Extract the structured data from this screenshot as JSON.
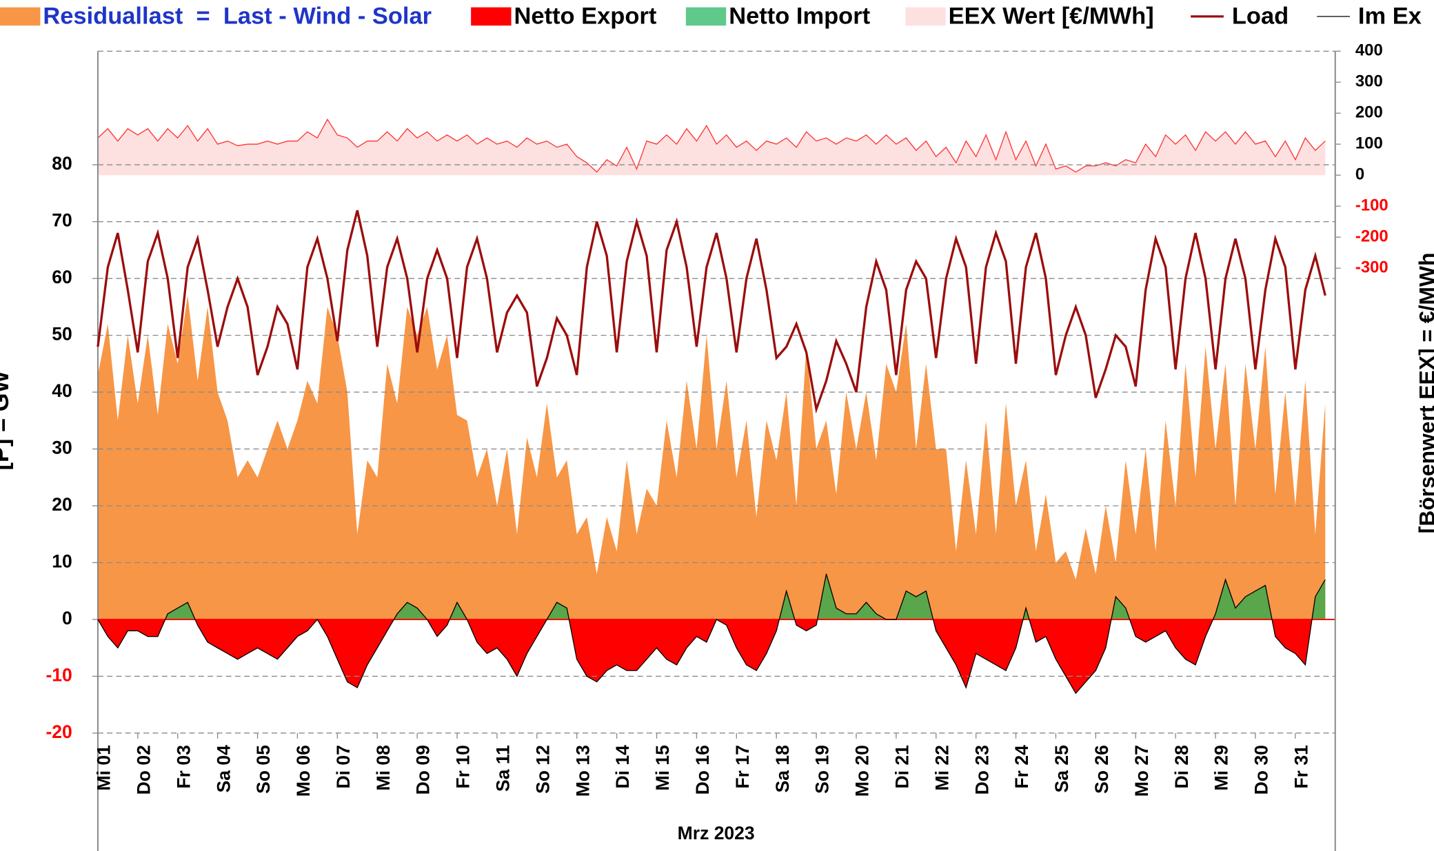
{
  "chart_data": {
    "type": "area",
    "xlabel": "Mrz 2023",
    "ylabel": "[P] = GW",
    "y2label": "[Börsenwert EEX]  =  €/MWh",
    "xlim": [
      0,
      31
    ],
    "ylim": [
      -20,
      100
    ],
    "y2lim": [
      -1800,
      400
    ],
    "xticks": [
      {
        "value": 0,
        "label": "Mi 01"
      },
      {
        "value": 1,
        "label": "Do 02"
      },
      {
        "value": 2,
        "label": "Fr 03"
      },
      {
        "value": 3,
        "label": "Sa 04"
      },
      {
        "value": 4,
        "label": "So 05"
      },
      {
        "value": 5,
        "label": "Mo 06"
      },
      {
        "value": 6,
        "label": "Di 07"
      },
      {
        "value": 7,
        "label": "Mi 08"
      },
      {
        "value": 8,
        "label": "Do 09"
      },
      {
        "value": 9,
        "label": "Fr 10"
      },
      {
        "value": 10,
        "label": "Sa 11"
      },
      {
        "value": 11,
        "label": "So 12"
      },
      {
        "value": 12,
        "label": "Mo 13"
      },
      {
        "value": 13,
        "label": "Di 14"
      },
      {
        "value": 14,
        "label": "Mi 15"
      },
      {
        "value": 15,
        "label": "Do 16"
      },
      {
        "value": 16,
        "label": "Fr 17"
      },
      {
        "value": 17,
        "label": "Sa 18"
      },
      {
        "value": 18,
        "label": "So 19"
      },
      {
        "value": 19,
        "label": "Mo 20"
      },
      {
        "value": 20,
        "label": "Di 21"
      },
      {
        "value": 21,
        "label": "Mi 22"
      },
      {
        "value": 22,
        "label": "Do 23"
      },
      {
        "value": 23,
        "label": "Fr 24"
      },
      {
        "value": 24,
        "label": "Sa 25"
      },
      {
        "value": 25,
        "label": "So 26"
      },
      {
        "value": 26,
        "label": "Mo 27"
      },
      {
        "value": 27,
        "label": "Di 28"
      },
      {
        "value": 28,
        "label": "Mi 29"
      },
      {
        "value": 29,
        "label": "Do 30"
      },
      {
        "value": 30,
        "label": "Fr 31"
      }
    ],
    "yticks": [
      -20,
      -10,
      0,
      10,
      20,
      30,
      40,
      50,
      60,
      70,
      80
    ],
    "y2ticks": [
      -300,
      -200,
      -100,
      0,
      100,
      200,
      300,
      400
    ],
    "grid": true,
    "negative_tick_color": "#ff0000",
    "zero_line_color": "#ff0000",
    "x": [
      0,
      0.25,
      0.5,
      0.75,
      1,
      1.25,
      1.5,
      1.75,
      2,
      2.25,
      2.5,
      2.75,
      3,
      3.25,
      3.5,
      3.75,
      4,
      4.25,
      4.5,
      4.75,
      5,
      5.25,
      5.5,
      5.75,
      6,
      6.25,
      6.5,
      6.75,
      7,
      7.25,
      7.5,
      7.75,
      8,
      8.25,
      8.5,
      8.75,
      9,
      9.25,
      9.5,
      9.75,
      10,
      10.25,
      10.5,
      10.75,
      11,
      11.25,
      11.5,
      11.75,
      12,
      12.25,
      12.5,
      12.75,
      13,
      13.25,
      13.5,
      13.75,
      14,
      14.25,
      14.5,
      14.75,
      15,
      15.25,
      15.5,
      15.75,
      16,
      16.25,
      16.5,
      16.75,
      17,
      17.25,
      17.5,
      17.75,
      18,
      18.25,
      18.5,
      18.75,
      19,
      19.25,
      19.5,
      19.75,
      20,
      20.25,
      20.5,
      20.75,
      21,
      21.25,
      21.5,
      21.75,
      22,
      22.25,
      22.5,
      22.75,
      23,
      23.25,
      23.5,
      23.75,
      24,
      24.25,
      24.5,
      24.75,
      25,
      25.25,
      25.5,
      25.75,
      26,
      26.25,
      26.5,
      26.75,
      27,
      27.25,
      27.5,
      27.75,
      28,
      28.25,
      28.5,
      28.75,
      29,
      29.25,
      29.5,
      29.75,
      30,
      30.25,
      30.5,
      30.75
    ],
    "series": [
      {
        "name": "Residuallast  =  Last - Wind - Solar",
        "style": "area",
        "color": "#f79646",
        "label_color": "#1f35c8",
        "values": [
          43,
          52,
          35,
          50,
          38,
          50,
          36,
          52,
          45,
          57,
          42,
          55,
          40,
          35,
          25,
          28,
          25,
          30,
          35,
          30,
          35,
          42,
          38,
          55,
          50,
          40,
          15,
          28,
          25,
          45,
          38,
          55,
          50,
          55,
          44,
          50,
          36,
          35,
          25,
          30,
          20,
          30,
          15,
          32,
          25,
          38,
          25,
          28,
          15,
          18,
          8,
          18,
          12,
          28,
          15,
          23,
          20,
          35,
          25,
          42,
          30,
          50,
          30,
          42,
          25,
          35,
          18,
          35,
          28,
          40,
          20,
          48,
          30,
          35,
          22,
          40,
          30,
          40,
          28,
          45,
          40,
          52,
          30,
          45,
          30,
          30,
          12,
          28,
          15,
          35,
          15,
          38,
          20,
          28,
          12,
          22,
          10,
          12,
          7,
          16,
          8,
          20,
          10,
          28,
          15,
          30,
          12,
          35,
          20,
          45,
          25,
          48,
          30,
          45,
          20,
          45,
          30,
          48,
          22,
          40,
          20,
          42,
          15,
          38
        ]
      },
      {
        "name": "EEX Wert [€/MWh]",
        "style": "area",
        "axis": "y2",
        "color": "#fde0e0",
        "line_color": "#ff3333",
        "values": [
          120,
          150,
          110,
          150,
          130,
          150,
          110,
          150,
          120,
          160,
          110,
          150,
          100,
          110,
          95,
          100,
          100,
          110,
          100,
          110,
          110,
          140,
          120,
          180,
          130,
          120,
          90,
          110,
          110,
          140,
          110,
          150,
          120,
          140,
          110,
          130,
          110,
          130,
          100,
          120,
          100,
          110,
          90,
          120,
          100,
          110,
          90,
          100,
          60,
          40,
          10,
          50,
          30,
          90,
          20,
          110,
          100,
          130,
          100,
          150,
          110,
          160,
          100,
          130,
          90,
          110,
          80,
          110,
          100,
          120,
          90,
          140,
          110,
          120,
          100,
          120,
          110,
          130,
          100,
          130,
          100,
          120,
          80,
          110,
          60,
          90,
          40,
          110,
          60,
          130,
          50,
          140,
          50,
          110,
          30,
          100,
          20,
          30,
          10,
          30,
          30,
          40,
          30,
          50,
          40,
          100,
          60,
          130,
          100,
          130,
          80,
          140,
          110,
          140,
          100,
          140,
          100,
          110,
          60,
          110,
          50,
          120,
          80,
          110
        ]
      },
      {
        "name": "Load",
        "style": "line",
        "color": "#9b0d0d",
        "values": [
          48,
          62,
          68,
          58,
          47,
          63,
          68,
          60,
          46,
          62,
          67,
          58,
          48,
          55,
          60,
          55,
          43,
          48,
          55,
          52,
          44,
          62,
          67,
          60,
          49,
          65,
          72,
          64,
          48,
          62,
          67,
          60,
          47,
          60,
          65,
          60,
          46,
          62,
          67,
          60,
          47,
          54,
          57,
          54,
          41,
          46,
          53,
          50,
          43,
          62,
          70,
          64,
          47,
          63,
          70,
          64,
          47,
          65,
          70,
          62,
          48,
          62,
          68,
          60,
          47,
          60,
          67,
          58,
          46,
          48,
          52,
          47,
          37,
          42,
          49,
          45,
          40,
          55,
          63,
          58,
          43,
          58,
          63,
          60,
          46,
          60,
          67,
          62,
          45,
          62,
          68,
          63,
          45,
          62,
          68,
          60,
          43,
          50,
          55,
          50,
          39,
          44,
          50,
          48,
          41,
          58,
          67,
          62,
          44,
          60,
          68,
          60,
          44,
          60,
          67,
          60,
          44,
          58,
          67,
          62,
          44,
          58,
          64,
          57
        ]
      },
      {
        "name": "Im Ex",
        "style": "line",
        "color": "#000000",
        "fill_below": {
          "name": "Netto Export",
          "color": "#ff0000"
        },
        "fill_above": {
          "name": "Netto Import",
          "color": "#5aa64a"
        },
        "values": [
          0,
          -3,
          -5,
          -2,
          -2,
          -3,
          -3,
          1,
          2,
          3,
          -1,
          -4,
          -5,
          -6,
          -7,
          -6,
          -5,
          -6,
          -7,
          -5,
          -3,
          -2,
          0,
          -3,
          -7,
          -11,
          -12,
          -8,
          -5,
          -2,
          1,
          3,
          2,
          0,
          -3,
          -1,
          3,
          0,
          -4,
          -6,
          -5,
          -7,
          -10,
          -6,
          -3,
          0,
          3,
          2,
          -7,
          -10,
          -11,
          -9,
          -8,
          -9,
          -9,
          -7,
          -5,
          -7,
          -8,
          -5,
          -3,
          -4,
          0,
          -1,
          -5,
          -8,
          -9,
          -6,
          -2,
          5,
          -1,
          -2,
          -1,
          8,
          2,
          1,
          1,
          3,
          1,
          0,
          0,
          5,
          4,
          5,
          -2,
          -5,
          -8,
          -12,
          -6,
          -7,
          -8,
          -9,
          -5,
          2,
          -4,
          -3,
          -7,
          -10,
          -13,
          -11,
          -9,
          -5,
          4,
          2,
          -3,
          -4,
          -3,
          -2,
          -5,
          -7,
          -8,
          -3,
          1,
          7,
          2,
          4,
          5,
          6,
          -3,
          -5,
          -6,
          -8,
          4,
          7
        ]
      }
    ]
  }
}
